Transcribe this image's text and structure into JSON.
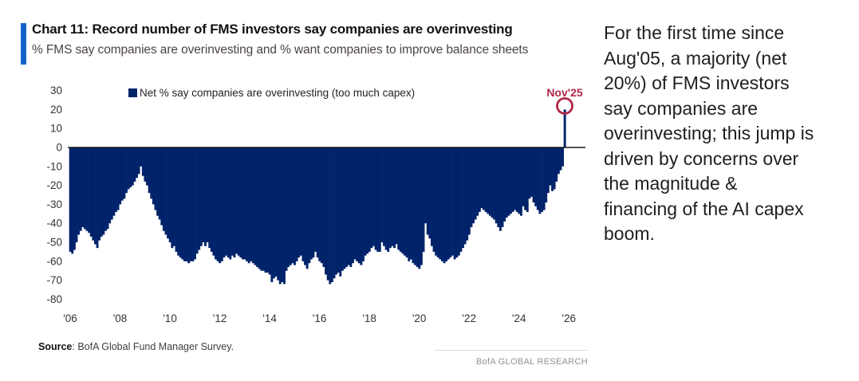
{
  "header": {
    "title": "Chart 11: Record number of FMS investors say companies are overinvesting",
    "subtitle": "% FMS say companies are overinvesting and % want companies to improve balance sheets",
    "accent_color": "#1464c8"
  },
  "legend": {
    "label": "Net % say companies are overinvesting (too much capex)"
  },
  "annotation": {
    "label": "Nov'25",
    "color": "#b02747"
  },
  "commentary": {
    "text": "For the first time since\nAug'05, a majority (net\n20%) of FMS investors\nsay companies are\noverinvesting; this jump is\ndriven by concerns over\nthe magnitude &\nfinancing of the AI capex\nboom."
  },
  "footer": {
    "source_label": "Source",
    "source_rest": ": BofA Global Fund Manager Survey.",
    "brand": "BofA GLOBAL RESEARCH"
  },
  "chart_data": {
    "type": "bar",
    "title": "Net % say companies are overinvesting (too much capex)",
    "x_start": "2006-01",
    "x_end": "2025-11",
    "frequency": "monthly",
    "bar_color": "#00236a",
    "y_ticks": [
      30,
      20,
      10,
      0,
      -10,
      -20,
      -30,
      -40,
      -50,
      -60,
      -70,
      -80
    ],
    "ylim": [
      -85,
      35
    ],
    "x_tick_years": [
      2006,
      2008,
      2010,
      2012,
      2014,
      2016,
      2018,
      2020,
      2022,
      2024,
      2026
    ],
    "x_tick_labels": [
      "'06",
      "'08",
      "'10",
      "'12",
      "'14",
      "'16",
      "'18",
      "'20",
      "'22",
      "'24",
      "'26"
    ],
    "highlight": {
      "x": "2025-11",
      "value": 20,
      "label": "Nov'25"
    },
    "values": [
      -55,
      -56,
      -54,
      -50,
      -46,
      -44,
      -42,
      -43,
      -44,
      -45,
      -47,
      -49,
      -51,
      -53,
      -49,
      -47,
      -46,
      -44,
      -43,
      -40,
      -38,
      -36,
      -34,
      -33,
      -30,
      -28,
      -27,
      -24,
      -22,
      -21,
      -20,
      -18,
      -16,
      -14,
      -10,
      -15,
      -18,
      -20,
      -24,
      -27,
      -30,
      -33,
      -36,
      -38,
      -41,
      -44,
      -46,
      -48,
      -50,
      -53,
      -52,
      -55,
      -57,
      -58,
      -59,
      -60,
      -60,
      -61,
      -60,
      -60,
      -59,
      -56,
      -54,
      -52,
      -50,
      -52,
      -50,
      -53,
      -55,
      -57,
      -59,
      -60,
      -61,
      -60,
      -58,
      -57,
      -58,
      -59,
      -57,
      -58,
      -56,
      -57,
      -58,
      -59,
      -59,
      -60,
      -61,
      -60,
      -61,
      -62,
      -63,
      -64,
      -65,
      -65,
      -66,
      -66,
      -67,
      -71,
      -69,
      -68,
      -70,
      -72,
      -71,
      -72,
      -65,
      -63,
      -62,
      -61,
      -62,
      -60,
      -58,
      -57,
      -60,
      -62,
      -64,
      -61,
      -59,
      -58,
      -55,
      -58,
      -60,
      -61,
      -63,
      -67,
      -70,
      -72,
      -71,
      -69,
      -67,
      -66,
      -68,
      -65,
      -64,
      -63,
      -62,
      -63,
      -61,
      -59,
      -60,
      -61,
      -62,
      -60,
      -57,
      -56,
      -55,
      -53,
      -52,
      -54,
      -55,
      -55,
      -50,
      -52,
      -54,
      -55,
      -53,
      -52,
      -53,
      -51,
      -54,
      -55,
      -56,
      -57,
      -58,
      -60,
      -59,
      -61,
      -62,
      -63,
      -64,
      -62,
      -55,
      -40,
      -46,
      -48,
      -52,
      -55,
      -57,
      -58,
      -59,
      -60,
      -61,
      -60,
      -59,
      -58,
      -57,
      -59,
      -58,
      -57,
      -55,
      -53,
      -51,
      -49,
      -46,
      -42,
      -40,
      -38,
      -36,
      -34,
      -32,
      -33,
      -34,
      -35,
      -36,
      -37,
      -38,
      -40,
      -42,
      -44,
      -42,
      -39,
      -37,
      -36,
      -35,
      -34,
      -33,
      -34,
      -35,
      -36,
      -31,
      -33,
      -34,
      -27,
      -26,
      -29,
      -31,
      -33,
      -35,
      -34,
      -33,
      -29,
      -24,
      -20,
      -23,
      -22,
      -18,
      -14,
      -12,
      -10,
      20
    ]
  }
}
